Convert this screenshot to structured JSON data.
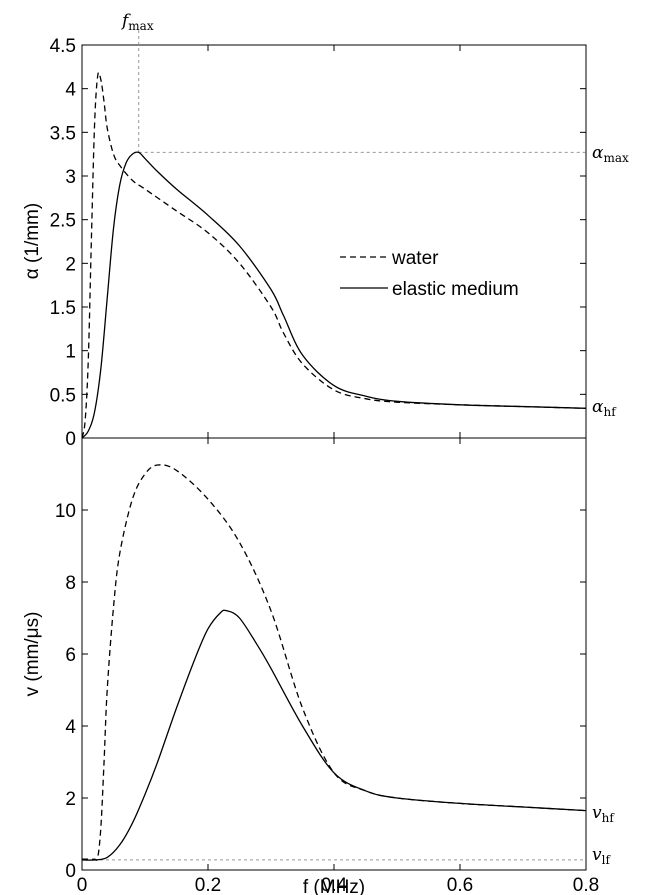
{
  "chart_data": [
    {
      "type": "line",
      "panel": "top",
      "xlabel": "",
      "ylabel": "α (1/mm)",
      "xlim": [
        0,
        0.8
      ],
      "ylim": [
        0,
        4.5
      ],
      "xticks": [
        0,
        0.2,
        0.4,
        0.6,
        0.8
      ],
      "yticks": [
        0,
        0.5,
        1,
        1.5,
        2,
        2.5,
        3,
        3.5,
        4,
        4.5
      ],
      "ytick_labels": [
        "0",
        "0.5",
        "1",
        "1.5",
        "2",
        "2.5",
        "3",
        "3.5",
        "4",
        "4.5"
      ],
      "grid": false,
      "legend": {
        "placement": "center-right",
        "entries": [
          "water",
          "elastic medium"
        ]
      },
      "series": [
        {
          "name": "water",
          "style": "dashed",
          "x": [
            0,
            0.005,
            0.01,
            0.015,
            0.02,
            0.025,
            0.03,
            0.035,
            0.04,
            0.05,
            0.06,
            0.08,
            0.1,
            0.15,
            0.2,
            0.25,
            0.3,
            0.32,
            0.35,
            0.4,
            0.45,
            0.5,
            0.6,
            0.7,
            0.8
          ],
          "y": [
            0,
            0.2,
            0.9,
            2.3,
            3.6,
            4.15,
            4.1,
            3.85,
            3.55,
            3.25,
            3.12,
            2.95,
            2.85,
            2.6,
            2.35,
            2.0,
            1.5,
            1.2,
            0.85,
            0.55,
            0.45,
            0.41,
            0.38,
            0.36,
            0.34
          ]
        },
        {
          "name": "elastic medium",
          "style": "solid",
          "x": [
            0,
            0.01,
            0.02,
            0.03,
            0.04,
            0.05,
            0.06,
            0.07,
            0.08,
            0.09,
            0.1,
            0.12,
            0.15,
            0.2,
            0.25,
            0.3,
            0.32,
            0.35,
            0.4,
            0.45,
            0.5,
            0.6,
            0.7,
            0.8
          ],
          "y": [
            0,
            0.08,
            0.3,
            0.8,
            1.6,
            2.4,
            2.9,
            3.15,
            3.25,
            3.27,
            3.2,
            3.05,
            2.85,
            2.55,
            2.2,
            1.7,
            1.4,
            0.95,
            0.6,
            0.48,
            0.42,
            0.38,
            0.36,
            0.34
          ]
        }
      ],
      "annotations": {
        "f_max": {
          "x": 0.09,
          "label": "f",
          "sub": "max"
        },
        "alpha_max": {
          "y": 3.27,
          "label": "α",
          "sub": "max"
        },
        "alpha_hf": {
          "y": 0.34,
          "label": "α",
          "sub": "hf"
        }
      }
    },
    {
      "type": "line",
      "panel": "bottom",
      "xlabel": "f (MHz)",
      "ylabel": "v (mm/μs)",
      "xlim": [
        0,
        0.8
      ],
      "ylim": [
        0,
        12
      ],
      "xticks": [
        0,
        0.2,
        0.4,
        0.6,
        0.8
      ],
      "xtick_labels": [
        "0",
        "0.2",
        "0.4",
        "0.6",
        "0.8"
      ],
      "yticks": [
        0,
        2,
        4,
        6,
        8,
        10
      ],
      "ytick_labels": [
        "0",
        "2",
        "4",
        "6",
        "8",
        "10"
      ],
      "grid": false,
      "series": [
        {
          "name": "water",
          "style": "dashed",
          "x": [
            0,
            0.01,
            0.02,
            0.025,
            0.03,
            0.035,
            0.04,
            0.05,
            0.06,
            0.08,
            0.1,
            0.12,
            0.15,
            0.2,
            0.25,
            0.3,
            0.35,
            0.4,
            0.45,
            0.5,
            0.6,
            0.7,
            0.8
          ],
          "y": [
            0.3,
            0.3,
            0.3,
            0.35,
            1.2,
            3.0,
            5.0,
            7.3,
            8.8,
            10.3,
            11.0,
            11.25,
            11.1,
            10.3,
            9.1,
            7.2,
            4.5,
            2.7,
            2.2,
            2.0,
            1.85,
            1.75,
            1.65
          ]
        },
        {
          "name": "elastic medium",
          "style": "solid",
          "x": [
            0,
            0.02,
            0.04,
            0.06,
            0.08,
            0.1,
            0.12,
            0.15,
            0.18,
            0.2,
            0.22,
            0.23,
            0.25,
            0.28,
            0.3,
            0.35,
            0.4,
            0.45,
            0.5,
            0.6,
            0.7,
            0.8
          ],
          "y": [
            0.28,
            0.28,
            0.35,
            0.7,
            1.3,
            2.1,
            3.0,
            4.5,
            5.9,
            6.7,
            7.15,
            7.2,
            7.0,
            6.2,
            5.6,
            4.0,
            2.7,
            2.2,
            2.0,
            1.85,
            1.75,
            1.65
          ]
        }
      ],
      "annotations": {
        "v_hf": {
          "y": 1.65,
          "label": "v",
          "sub": "hf"
        },
        "v_lf": {
          "y": 0.28,
          "label": "v",
          "sub": "lf"
        }
      }
    }
  ]
}
